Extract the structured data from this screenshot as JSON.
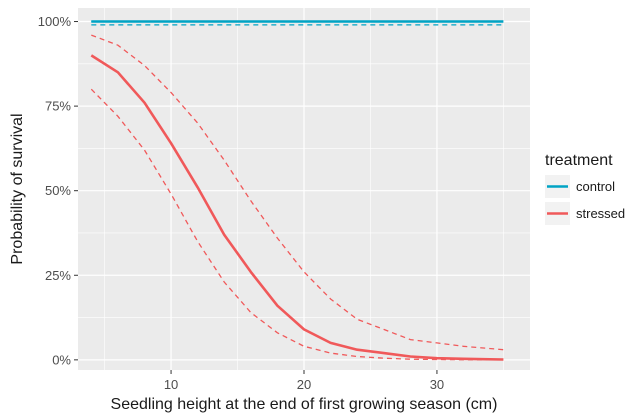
{
  "chart_data": {
    "type": "line",
    "xlabel": "Seedling height at the end of first growing season (cm)",
    "ylabel": "Probability of survival",
    "xlim": [
      3,
      37
    ],
    "ylim": [
      -0.03,
      1.04
    ],
    "x_ticks": [
      10,
      20,
      30
    ],
    "y_ticks": [
      {
        "value": 0,
        "label": "0%"
      },
      {
        "value": 0.25,
        "label": "25%"
      },
      {
        "value": 0.5,
        "label": "50%"
      },
      {
        "value": 0.75,
        "label": "75%"
      },
      {
        "value": 1,
        "label": "100%"
      }
    ],
    "grid": true,
    "background": "#ebebeb",
    "grid_color": "#ffffff",
    "legend": {
      "title": "treatment",
      "position": "right"
    },
    "x": [
      4,
      6,
      8,
      10,
      12,
      14,
      16,
      18,
      20,
      22,
      24,
      26,
      28,
      30,
      32,
      35
    ],
    "series": [
      {
        "name": "control",
        "color": "#00a3c4",
        "values": [
          1,
          1,
          1,
          1,
          1,
          1,
          1,
          1,
          1,
          1,
          1,
          1,
          1,
          1,
          1,
          1
        ],
        "lower": [
          0.99,
          0.99,
          0.99,
          0.99,
          0.99,
          0.99,
          0.99,
          0.99,
          0.99,
          0.99,
          0.99,
          0.99,
          0.99,
          0.99,
          0.99,
          0.99
        ],
        "upper": [
          1,
          1,
          1,
          1,
          1,
          1,
          1,
          1,
          1,
          1,
          1,
          1,
          1,
          1,
          1,
          1
        ]
      },
      {
        "name": "stressed",
        "color": "#f0595a",
        "values": [
          0.9,
          0.85,
          0.76,
          0.64,
          0.51,
          0.37,
          0.26,
          0.16,
          0.09,
          0.05,
          0.03,
          0.02,
          0.01,
          0.005,
          0.003,
          0.001
        ],
        "lower": [
          0.8,
          0.72,
          0.62,
          0.49,
          0.35,
          0.23,
          0.14,
          0.08,
          0.04,
          0.02,
          0.01,
          0.005,
          0.002,
          0.001,
          0.0005,
          0.0002
        ],
        "upper": [
          0.96,
          0.93,
          0.87,
          0.79,
          0.7,
          0.59,
          0.47,
          0.36,
          0.26,
          0.18,
          0.12,
          0.09,
          0.06,
          0.05,
          0.04,
          0.03
        ]
      }
    ]
  }
}
